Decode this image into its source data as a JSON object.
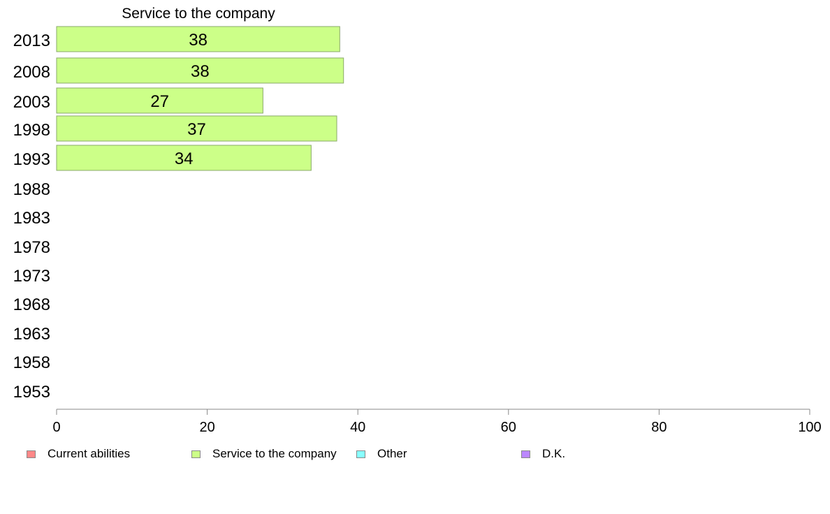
{
  "chart_data": {
    "type": "bar",
    "orientation": "horizontal",
    "title": "Service to the company",
    "categories": [
      "2013",
      "2008",
      "2003",
      "1998",
      "1993",
      "1988",
      "1983",
      "1978",
      "1973",
      "1968",
      "1963",
      "1958",
      "1953"
    ],
    "series": [
      {
        "name": "Service to the company",
        "color": "#ccff88",
        "values": [
          37.6,
          38.1,
          27.4,
          37.2,
          33.8,
          null,
          null,
          null,
          null,
          null,
          null,
          null,
          null
        ],
        "labels": [
          "38",
          "38",
          "27",
          "37",
          "34",
          "",
          "",
          "",
          "",
          "",
          "",
          "",
          ""
        ]
      }
    ],
    "xlim": [
      0,
      100
    ],
    "xticks": [
      0,
      20,
      40,
      60,
      80,
      100
    ],
    "grid": false,
    "legend_position": "bottom",
    "legend": [
      {
        "name": "Current abilities",
        "color": "#ff8888"
      },
      {
        "name": "Service to the company",
        "color": "#ccff88"
      },
      {
        "name": "Other",
        "color": "#88ffff"
      },
      {
        "name": "D.K.",
        "color": "#bb88ff"
      }
    ]
  }
}
